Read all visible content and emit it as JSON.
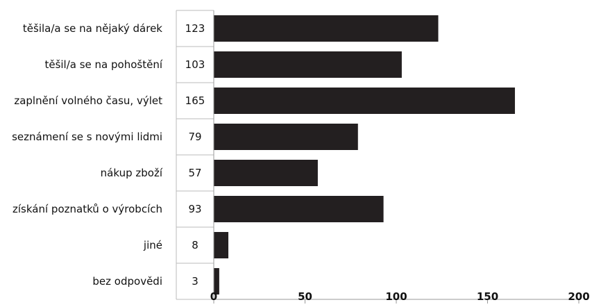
{
  "chart_data": {
    "type": "bar",
    "orientation": "horizontal",
    "categories": [
      "těšila/a se na nějaký dárek",
      "těšil/a se  na pohoštění",
      "zaplnění volného času, výlet",
      "seznámení se s novými lidmi",
      "nákup zboží",
      "získání poznatků o výrobcích",
      "jiné",
      "bez odpovědi"
    ],
    "values": [
      123,
      103,
      165,
      79,
      57,
      93,
      8,
      3
    ],
    "value_labels": [
      "123",
      "103",
      "165",
      "79",
      "57",
      "93",
      "8",
      "3"
    ],
    "xlim": [
      0,
      200
    ],
    "x_ticks": [
      0,
      50,
      100,
      150,
      200
    ],
    "x_tick_labels": [
      "0",
      "50",
      "100",
      "150",
      "200"
    ],
    "title": "",
    "xlabel": "",
    "ylabel": "",
    "grid": false,
    "legend": "none",
    "colors": {
      "bar": "#231f20",
      "axis": "#999999",
      "separator": "#bbbbbb",
      "text": "#111111"
    }
  }
}
